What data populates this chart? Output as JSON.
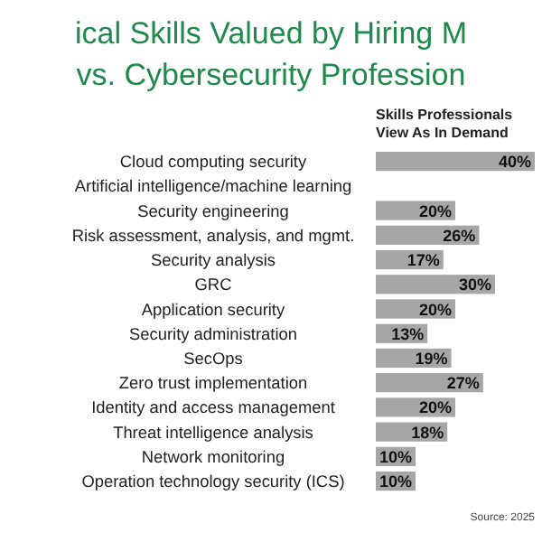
{
  "chart_data": {
    "type": "bar",
    "orientation": "horizontal",
    "title": "ical Skills Valued by Hiring M",
    "subtitle": "vs. Cybersecurity Profession",
    "xlabel": "Skills Professionals View As In Demand",
    "categories": [
      "Cloud computing security",
      "Artificial intelligence/machine learning",
      "Security engineering",
      "Risk assessment, analysis, and mgmt.",
      "Security analysis",
      "GRC",
      "Application security",
      "Security administration",
      "SecOps",
      "Zero trust implementation",
      "Identity and access management",
      "Threat intelligence analysis",
      "Network monitoring",
      "Operation technology security (ICS)"
    ],
    "values": [
      40,
      null,
      20,
      26,
      17,
      30,
      20,
      13,
      19,
      27,
      20,
      18,
      10,
      10
    ],
    "value_labels": [
      "40%",
      null,
      "20%",
      "26%",
      "17%",
      "30%",
      "20%",
      "13%",
      "19%",
      "27%",
      "20%",
      "18%",
      "10%",
      "10%"
    ],
    "color": "#a6a6a6",
    "annotations": [
      "Source: 2025"
    ]
  }
}
